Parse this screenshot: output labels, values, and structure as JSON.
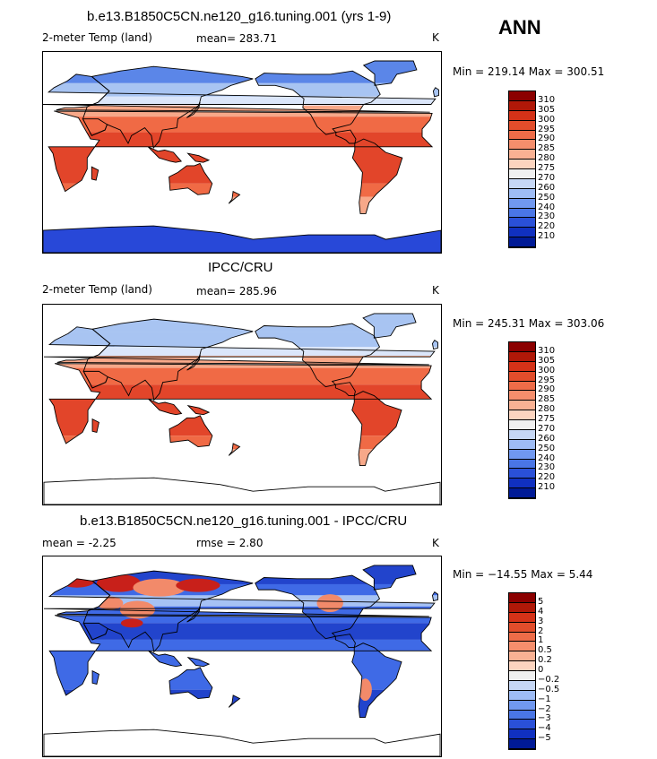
{
  "season": "ANN",
  "panels": [
    {
      "title": "b.e13.B1850C5CN.ne120_g16.tuning.001 (yrs 1-9)",
      "left_label": "2-meter Temp (land)",
      "stat1": "mean= 283.71",
      "stat2": "",
      "units": "K",
      "minmax": "Min = 219.14 Max = 300.51",
      "colorbar": {
        "labels": [
          "310",
          "305",
          "300",
          "295",
          "290",
          "285",
          "280",
          "275",
          "270",
          "260",
          "250",
          "240",
          "230",
          "220",
          "210"
        ]
      }
    },
    {
      "title": "IPCC/CRU",
      "left_label": "2-meter Temp (land)",
      "stat1": "mean= 285.96",
      "stat2": "",
      "units": "K",
      "minmax": "Min = 245.31 Max = 303.06",
      "colorbar": {
        "labels": [
          "310",
          "305",
          "300",
          "295",
          "290",
          "285",
          "280",
          "275",
          "270",
          "260",
          "250",
          "240",
          "230",
          "220",
          "210"
        ]
      }
    },
    {
      "title": "b.e13.B1850C5CN.ne120_g16.tuning.001 - IPCC/CRU",
      "left_label": "mean =   -2.25",
      "stat1": "rmse =    2.80",
      "stat2": "",
      "units": "K",
      "minmax": "Min = −14.55 Max =   5.44",
      "colorbar": {
        "labels": [
          "5",
          "4",
          "3",
          "2",
          "1",
          "0.5",
          "0.2",
          "0",
          "−0.2",
          "−0.5",
          "−1",
          "−2",
          "−3",
          "−4",
          "−5"
        ]
      }
    }
  ],
  "palette": [
    "#8b0000",
    "#b01808",
    "#d53218",
    "#e24d2b",
    "#ee6c48",
    "#f58e6c",
    "#f9b193",
    "#fcd4bf",
    "#f0f0f0",
    "#c6d7f5",
    "#9ebcf5",
    "#7098f0",
    "#4a76e6",
    "#2a50d8",
    "#1030c0",
    "#001a96"
  ],
  "map_colors": {
    "ocean": "#ffffff",
    "tropical": "#e2452a",
    "warm": "#f06a45",
    "temperate": "#f7a889",
    "cool": "#dbe6fa",
    "cold": "#a8c4f2",
    "frigid": "#5b86e8",
    "ice": "#2848d8",
    "diff_neg": "#3f6ae6",
    "diff_strongneg": "#2244cc",
    "diff_pos": "#f28a6a",
    "diff_strongpos": "#c8201a",
    "diff_mid": "#a6c2f4"
  }
}
